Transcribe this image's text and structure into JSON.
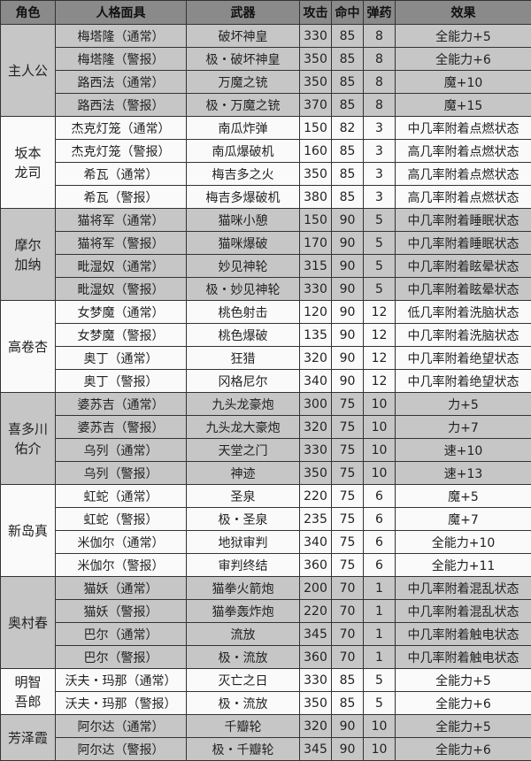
{
  "headers": [
    "角色",
    "人格面具",
    "武器",
    "攻击",
    "命中",
    "弹药",
    "效果"
  ],
  "groups": [
    {
      "role": "主人公",
      "shade": "gray",
      "rows": [
        [
          "梅塔隆（通常）",
          "破坏神皇",
          "330",
          "85",
          "8",
          "全能力+5"
        ],
        [
          "梅塔隆（警报）",
          "极・破坏神皇",
          "350",
          "85",
          "8",
          "全能力+6"
        ],
        [
          "路西法（通常）",
          "万魔之铳",
          "350",
          "85",
          "8",
          "魔+10"
        ],
        [
          "路西法（警报）",
          "极・万魔之铳",
          "370",
          "85",
          "8",
          "魔+15"
        ]
      ]
    },
    {
      "role": "坂本\n龙司",
      "shade": "white",
      "rows": [
        [
          "杰克灯笼（通常）",
          "南瓜炸弹",
          "150",
          "82",
          "3",
          "中几率附着点燃状态"
        ],
        [
          "杰克灯笼（警报）",
          "南瓜爆破机",
          "160",
          "85",
          "3",
          "高几率附着点燃状态"
        ],
        [
          "希瓦（通常）",
          "梅吉多之火",
          "350",
          "85",
          "3",
          "高几率附着点燃状态"
        ],
        [
          "希瓦（警报）",
          "梅吉多爆破机",
          "380",
          "85",
          "3",
          "高几率附着点燃状态"
        ]
      ]
    },
    {
      "role": "摩尔\n加纳",
      "shade": "gray",
      "rows": [
        [
          "猫将军（通常）",
          "猫咪小憩",
          "150",
          "90",
          "5",
          "中几率附着睡眠状态"
        ],
        [
          "猫将军（警报）",
          "猫咪爆破",
          "170",
          "90",
          "5",
          "中几率附着睡眠状态"
        ],
        [
          "毗湿奴（通常）",
          "妙见神轮",
          "315",
          "90",
          "5",
          "中几率附着眩晕状态"
        ],
        [
          "毗湿奴（警报）",
          "极・妙见神轮",
          "330",
          "90",
          "5",
          "中几率附着眩晕状态"
        ]
      ]
    },
    {
      "role": "高卷杏",
      "shade": "white",
      "rows": [
        [
          "女梦魔（通常）",
          "桃色射击",
          "120",
          "90",
          "12",
          "低几率附着洗脑状态"
        ],
        [
          "女梦魔（警报）",
          "桃色爆破",
          "135",
          "90",
          "12",
          "中几率附着洗脑状态"
        ],
        [
          "奥丁（通常）",
          "狂猎",
          "320",
          "90",
          "12",
          "中几率附着绝望状态"
        ],
        [
          "奥丁（警报）",
          "冈格尼尔",
          "340",
          "90",
          "12",
          "中几率附着绝望状态"
        ]
      ]
    },
    {
      "role": "喜多川\n佑介",
      "shade": "gray",
      "rows": [
        [
          "婆苏吉（通常）",
          "九头龙豪炮",
          "300",
          "75",
          "10",
          "力+5"
        ],
        [
          "婆苏吉（警报）",
          "九头龙大豪炮",
          "320",
          "75",
          "10",
          "力+7"
        ],
        [
          "乌列（通常）",
          "天堂之门",
          "330",
          "75",
          "10",
          "速+10"
        ],
        [
          "乌列（警报）",
          "神迹",
          "350",
          "75",
          "10",
          "速+13"
        ]
      ]
    },
    {
      "role": "新岛真",
      "shade": "white",
      "rows": [
        [
          "虹蛇（通常）",
          "圣泉",
          "220",
          "75",
          "6",
          "魔+5"
        ],
        [
          "虹蛇（警报）",
          "极・圣泉",
          "235",
          "75",
          "6",
          "魔+7"
        ],
        [
          "米伽尔（通常）",
          "地狱审判",
          "340",
          "75",
          "6",
          "全能力+10"
        ],
        [
          "米伽尔（警报）",
          "审判终结",
          "360",
          "75",
          "6",
          "全能力+11"
        ]
      ]
    },
    {
      "role": "奥村春",
      "shade": "gray",
      "rows": [
        [
          "猫妖（通常）",
          "猫拳火箭炮",
          "200",
          "70",
          "1",
          "中几率附着混乱状态"
        ],
        [
          "猫妖（警报）",
          "猫拳轰炸炮",
          "220",
          "70",
          "1",
          "中几率附着混乱状态"
        ],
        [
          "巴尔（通常）",
          "流放",
          "345",
          "70",
          "1",
          "中几率附着触电状态"
        ],
        [
          "巴尔（警报）",
          "极・流放",
          "360",
          "70",
          "1",
          "中几率附着触电状态"
        ]
      ]
    },
    {
      "role": "明智\n吾郎",
      "shade": "white",
      "rows": [
        [
          "沃夫・玛那（通常）",
          "灭亡之日",
          "330",
          "85",
          "5",
          "全能力+5"
        ],
        [
          "沃夫・玛那（警报）",
          "极・流放",
          "350",
          "85",
          "5",
          "全能力+6"
        ]
      ]
    },
    {
      "role": "芳泽霞",
      "shade": "gray",
      "rows": [
        [
          "阿尔达（通常）",
          "千瓣轮",
          "320",
          "90",
          "10",
          "全能力+5"
        ],
        [
          "阿尔达（警报）",
          "极・千瓣轮",
          "345",
          "90",
          "10",
          "全能力+6"
        ]
      ]
    }
  ]
}
